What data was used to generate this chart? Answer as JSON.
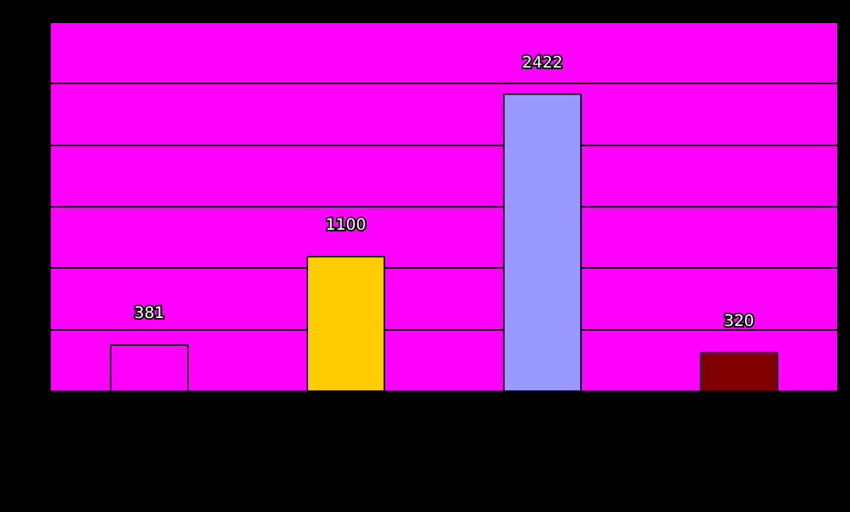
{
  "chart_data": {
    "type": "bar",
    "categories": [
      null,
      null,
      null,
      null
    ],
    "values": [
      381,
      1100,
      2422,
      320
    ],
    "colors": [
      "#ff00ff",
      "#ffcc00",
      "#9999ff",
      "#800000"
    ],
    "ylim": [
      0,
      3000
    ],
    "yticks": [
      {
        "value": 0,
        "label": null
      },
      {
        "value": 500,
        "label": null
      },
      {
        "value": 1000,
        "label": null
      },
      {
        "value": 1500,
        "label": null
      },
      {
        "value": 2000,
        "label": null
      },
      {
        "value": 2500,
        "label": null
      },
      {
        "value": 3000,
        "label": null
      }
    ],
    "grid": "y",
    "legend": false,
    "data_labels": true
  }
}
